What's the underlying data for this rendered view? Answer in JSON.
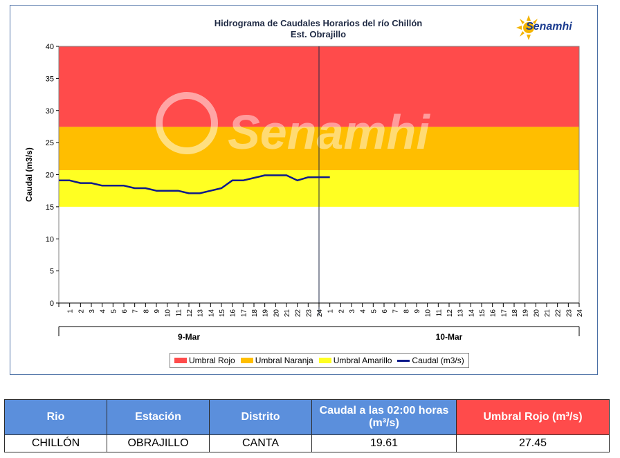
{
  "colors": {
    "rojo": "#ff4b4b",
    "naranja": "#ffbe00",
    "amarillo": "#ffff22",
    "caudal": "#0d1a8a",
    "header_blue": "#5b8fdc",
    "header_red": "#ff4b4b"
  },
  "logo": {
    "text": "Senamhi",
    "icon": "sun-logo-icon"
  },
  "watermark": "Senamhi",
  "chart_data": {
    "type": "line",
    "title": "Hidrograma de Caudales Horarios del río Chillón",
    "subtitle": "Est. Obrajillo",
    "ylabel": "Caudal  (m3/s)",
    "ylim": [
      0,
      40
    ],
    "yticks": [
      0,
      5,
      10,
      15,
      20,
      25,
      30,
      35,
      40
    ],
    "x_tick_labels": [
      "1",
      "2",
      "3",
      "4",
      "5",
      "6",
      "7",
      "8",
      "9",
      "10",
      "11",
      "12",
      "13",
      "14",
      "15",
      "16",
      "17",
      "18",
      "19",
      "20",
      "21",
      "22",
      "23",
      "24",
      "1",
      "2",
      "3",
      "4",
      "5",
      "6",
      "7",
      "8",
      "9",
      "10",
      "11",
      "12",
      "13",
      "14",
      "15",
      "16",
      "17",
      "18",
      "19",
      "20",
      "21",
      "22",
      "23",
      "24"
    ],
    "day_labels": [
      "9-Mar",
      "10-Mar"
    ],
    "thresholds": [
      {
        "name": "Umbral Rojo",
        "from": 27.45,
        "to": 40
      },
      {
        "name": "Umbral Naranja",
        "from": 20.7,
        "to": 27.45
      },
      {
        "name": "Umbral Amarillo",
        "from": 15,
        "to": 20.7
      }
    ],
    "series": [
      {
        "name": "Caudal (m3/s)",
        "values": [
          19.1,
          19.1,
          18.7,
          18.7,
          18.3,
          18.3,
          18.3,
          17.9,
          17.9,
          17.5,
          17.5,
          17.5,
          17.1,
          17.1,
          17.5,
          17.9,
          19.1,
          19.1,
          19.5,
          19.9,
          19.9,
          19.9,
          19.1,
          19.6,
          19.61,
          19.61
        ]
      }
    ],
    "grid": false,
    "legend_position": "bottom"
  },
  "legend": {
    "items": [
      "Umbral Rojo",
      "Umbral Naranja",
      "Umbral Amarillo",
      "Caudal (m3/s)"
    ]
  },
  "table": {
    "headers": [
      "Rio",
      "Estación",
      "Distrito",
      "Caudal a las 02:00 horas (m³/s)",
      "Umbral Rojo (m³/s)"
    ],
    "row": [
      "CHILLÓN",
      "OBRAJILLO",
      "CANTA",
      "19.61",
      "27.45"
    ]
  }
}
